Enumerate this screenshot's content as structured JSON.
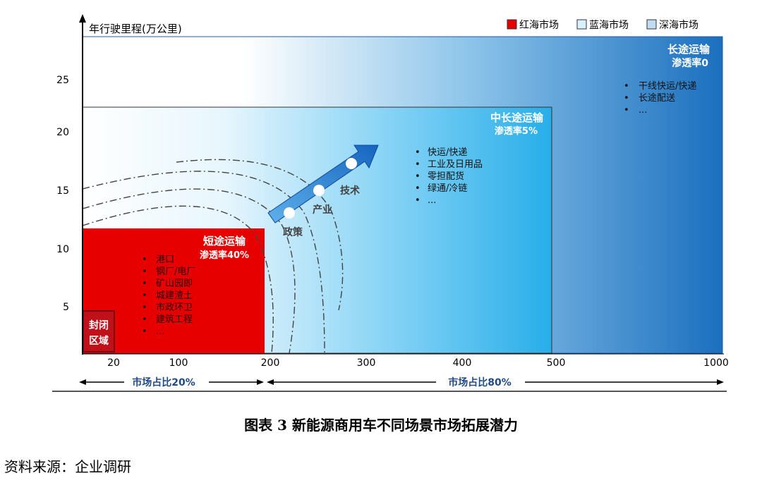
{
  "yaxis": {
    "label": "年行驶里程(万公里)",
    "ticks": [
      "5",
      "10",
      "15",
      "20",
      "25"
    ]
  },
  "xaxis": {
    "ticks": [
      "20",
      "100",
      "200",
      "300",
      "400",
      "500",
      "1000"
    ]
  },
  "legend": [
    {
      "label": "红海市场",
      "color": "#e60000"
    },
    {
      "label": "蓝海市场",
      "color": "#7fd0f2"
    },
    {
      "label": "深海市场",
      "color": "#3a8fd4"
    }
  ],
  "zones": {
    "long": {
      "title": "长途运输",
      "rate": "渗透率0",
      "items": [
        "干线快运/快递",
        "长途配送",
        "..."
      ]
    },
    "mid": {
      "title": "中长途运输",
      "rate": "渗透率5%",
      "items": [
        "快运/快递",
        "工业及日用品",
        "零担配货",
        "绿通/冷链",
        "..."
      ]
    },
    "short": {
      "title": "短途运输",
      "rate": "渗透率40%",
      "items": [
        "港口",
        "钢厂/电厂",
        "矿山园即",
        "城建渣土",
        "市政环卫",
        "建筑工程",
        "..."
      ]
    },
    "closed": {
      "line1": "封闭",
      "line2": "区域"
    }
  },
  "arrow": {
    "labels": [
      "政策",
      "产业",
      "技术"
    ]
  },
  "share": {
    "left": "市场占比20%",
    "right": "市场占比80%"
  },
  "caption": "图表 3  新能源商用车不同场景市场拓展潜力",
  "source": "资料来源：企业调研"
}
